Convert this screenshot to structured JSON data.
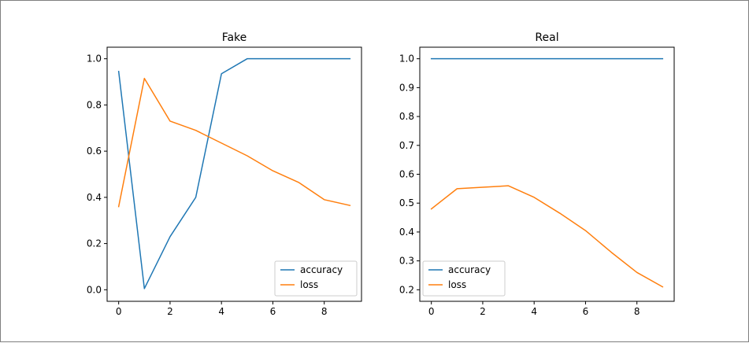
{
  "chart_data": [
    {
      "type": "line",
      "title": "Fake",
      "xlabel": "",
      "ylabel": "",
      "x": [
        0,
        1,
        2,
        3,
        4,
        5,
        6,
        7,
        8,
        9
      ],
      "xlim": [
        -0.45,
        9.45
      ],
      "ylim": [
        -0.05,
        1.05
      ],
      "xticks": [
        0,
        2,
        4,
        6,
        8
      ],
      "yticks": [
        0.0,
        0.2,
        0.4,
        0.6,
        0.8,
        1.0
      ],
      "ytick_decimals": 1,
      "grid": false,
      "legend_position": "lower right",
      "series": [
        {
          "name": "accuracy",
          "color": "#1f77b4",
          "values": [
            0.945,
            0.005,
            0.23,
            0.4,
            0.935,
            1.0,
            1.0,
            1.0,
            1.0,
            1.0
          ]
        },
        {
          "name": "loss",
          "color": "#ff7f0e",
          "values": [
            0.36,
            0.915,
            0.73,
            0.69,
            0.635,
            0.58,
            0.515,
            0.465,
            0.39,
            0.365
          ]
        }
      ]
    },
    {
      "type": "line",
      "title": "Real",
      "xlabel": "",
      "ylabel": "",
      "x": [
        0,
        1,
        2,
        3,
        4,
        5,
        6,
        7,
        8,
        9
      ],
      "xlim": [
        -0.45,
        9.45
      ],
      "ylim": [
        0.16,
        1.04
      ],
      "xticks": [
        0,
        2,
        4,
        6,
        8
      ],
      "yticks": [
        0.2,
        0.3,
        0.4,
        0.5,
        0.6,
        0.7,
        0.8,
        0.9,
        1.0
      ],
      "ytick_decimals": 1,
      "grid": false,
      "legend_position": "lower left",
      "series": [
        {
          "name": "accuracy",
          "color": "#1f77b4",
          "values": [
            1.0,
            1.0,
            1.0,
            1.0,
            1.0,
            1.0,
            1.0,
            1.0,
            1.0,
            1.0
          ]
        },
        {
          "name": "loss",
          "color": "#ff7f0e",
          "values": [
            0.48,
            0.55,
            0.555,
            0.56,
            0.52,
            0.465,
            0.405,
            0.33,
            0.26,
            0.21
          ]
        }
      ]
    }
  ]
}
